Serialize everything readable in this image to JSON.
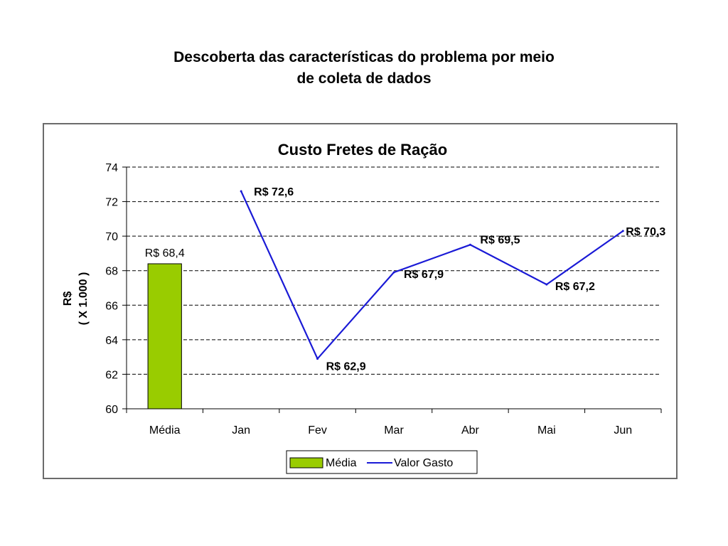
{
  "slide": {
    "title_line1": "Descoberta das características do problema por meio",
    "title_line2": "de coleta de dados"
  },
  "chart_data": {
    "type": "bar+line",
    "title": "Custo Fretes de Ração",
    "ylabel_line1": "R$",
    "ylabel_line2": "( X 1.000 )",
    "categories": [
      "Média",
      "Jan",
      "Fev",
      "Mar",
      "Abr",
      "Mai",
      "Jun"
    ],
    "ylim": [
      60,
      74
    ],
    "yticks": [
      60,
      62,
      64,
      66,
      68,
      70,
      72,
      74
    ],
    "grid": true,
    "legend_position": "bottom-center",
    "bar_series": {
      "name": "Média",
      "color": "#99cc00",
      "points": [
        {
          "category": "Média",
          "value": 68.4,
          "label": "R$ 68,4"
        }
      ]
    },
    "line_series": {
      "name": "Valor Gasto",
      "color": "#1a1ad6",
      "points": [
        {
          "category": "Jan",
          "value": 72.6,
          "label": "R$ 72,6"
        },
        {
          "category": "Fev",
          "value": 62.9,
          "label": "R$ 62,9"
        },
        {
          "category": "Mar",
          "value": 67.9,
          "label": "R$ 67,9"
        },
        {
          "category": "Abr",
          "value": 69.5,
          "label": "R$ 69,5"
        },
        {
          "category": "Mai",
          "value": 67.2,
          "label": "R$ 67,2"
        },
        {
          "category": "Jun",
          "value": 70.3,
          "label": "R$ 70,3"
        }
      ]
    }
  }
}
